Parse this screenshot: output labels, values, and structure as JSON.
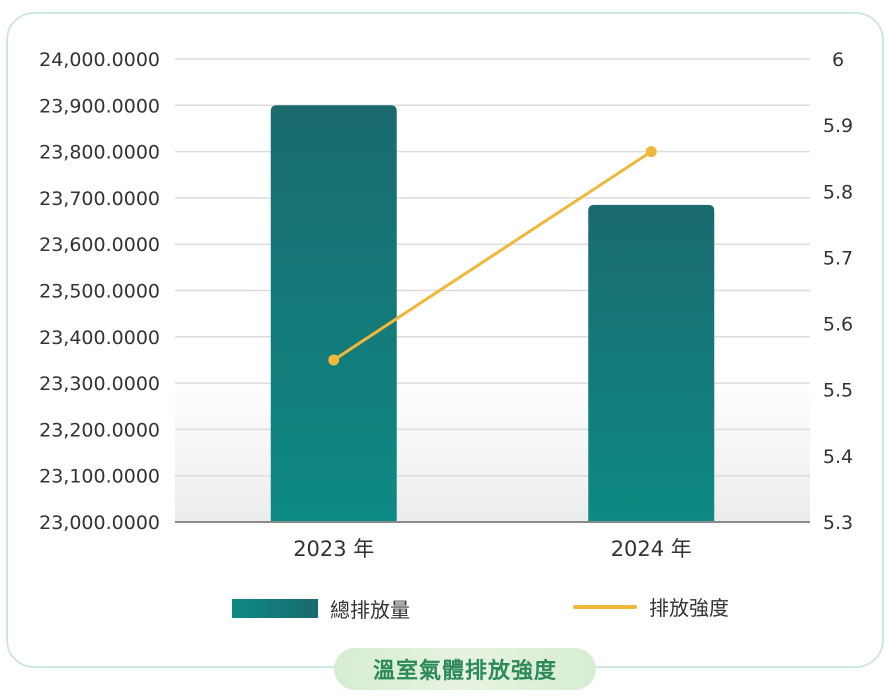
{
  "colors": {
    "bar_top": "#1a6a6e",
    "bar_bottom": "#0e8a84",
    "line": "#f0b83a",
    "grid": "#dcdcdc",
    "axis_text": "#333333",
    "caption_text": "#2c8a5a",
    "card_border": "#cfe6e7"
  },
  "legend": {
    "bar_label": "總排放量",
    "line_label": "排放強度"
  },
  "caption": "溫室氣體排放強度",
  "chart_data": {
    "type": "bar",
    "categories": [
      "2023 年",
      "2024 年"
    ],
    "series": [
      {
        "name": "總排放量",
        "type": "bar",
        "axis": "left",
        "values": [
          23900,
          23685
        ]
      },
      {
        "name": "排放強度",
        "type": "line",
        "axis": "right",
        "values": [
          5.545,
          5.86
        ]
      }
    ],
    "y_left": {
      "min": 23000,
      "max": 24000,
      "step": 100,
      "ticks": [
        "23,000.0000",
        "23,100.0000",
        "23,200.0000",
        "23,300.0000",
        "23,400.0000",
        "23,500.0000",
        "23,600.0000",
        "23,700.0000",
        "23,800.0000",
        "23,900.0000",
        "24,000.0000"
      ]
    },
    "y_right": {
      "min": 5.3,
      "max": 6,
      "step": 0.1,
      "ticks": [
        "5.3",
        "5.4",
        "5.5",
        "5.6",
        "5.7",
        "5.8",
        "5.9",
        "6"
      ]
    },
    "grid": true,
    "legend_position": "bottom"
  }
}
